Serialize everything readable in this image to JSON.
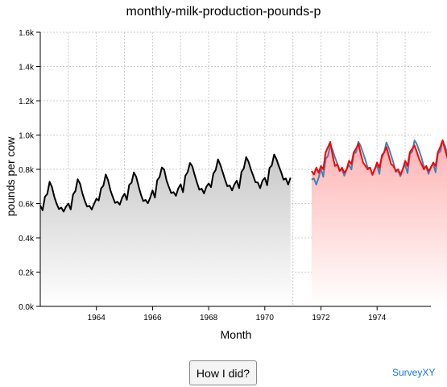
{
  "page": {
    "button_label": "How I did?",
    "brand": "SurveyXY"
  },
  "colors": {
    "history_line": "#000000",
    "actual_line": "#4682b4",
    "guess_line": "#ff0000",
    "history_area_top": "#c8c8c8",
    "guess_area_top": "#ffb3b3",
    "grid": "#cccccc",
    "link": "#1a73e8"
  },
  "chart_data": {
    "type": "line",
    "title": "monthly-milk-production-pounds-p",
    "xlabel": "Month",
    "ylabel": "pounds per cow",
    "x_range": [
      "1962-01",
      "1975-12"
    ],
    "ylim": [
      0,
      1600
    ],
    "x_ticks": [
      "1964",
      "1966",
      "1968",
      "1970",
      "1972",
      "1974"
    ],
    "y_ticks": [
      "0.0k",
      "0.2k",
      "0.4k",
      "0.6k",
      "0.8k",
      "1.0k",
      "1.2k",
      "1.4k",
      "1.6k"
    ],
    "grid": true,
    "legend": "none",
    "series": [
      {
        "role": "history",
        "start": "1962-01",
        "values": [
          589,
          561,
          640,
          656,
          727,
          697,
          640,
          599,
          568,
          577,
          553,
          582,
          600,
          566,
          653,
          673,
          742,
          716,
          660,
          617,
          583,
          587,
          565,
          598,
          628,
          618,
          688,
          705,
          770,
          736,
          678,
          639,
          604,
          611,
          594,
          634,
          658,
          622,
          709,
          722,
          782,
          756,
          702,
          653,
          615,
          621,
          602,
          635,
          677,
          635,
          736,
          755,
          811,
          798,
          735,
          697,
          661,
          667,
          645,
          688,
          713,
          667,
          762,
          784,
          837,
          817,
          767,
          722,
          681,
          687,
          660,
          698,
          717,
          696,
          775,
          796,
          858,
          826,
          783,
          740,
          701,
          706,
          677,
          711,
          734,
          690,
          785,
          805,
          871,
          845,
          801,
          764,
          725,
          723,
          690,
          734,
          750,
          707,
          807,
          824,
          886,
          859,
          819,
          783,
          740,
          747,
          711,
          751
        ]
      },
      {
        "role": "actual",
        "start": "1971-09",
        "values": [
          740,
          747,
          711,
          751,
          804,
          756,
          860,
          878,
          942,
          913,
          869,
          834,
          790,
          800,
          763,
          800,
          826,
          799,
          890,
          900,
          961,
          935,
          894,
          855,
          809,
          810,
          766,
          805,
          821,
          773,
          883,
          898,
          957,
          924,
          881,
          837,
          784,
          791,
          760,
          802,
          828,
          778,
          889,
          902,
          969,
          947,
          908,
          867,
          815,
          812,
          773,
          813,
          834,
          782,
          892,
          903,
          966,
          937,
          896,
          858,
          817,
          827,
          797,
          843
        ]
      },
      {
        "role": "guess",
        "start": "1971-09",
        "values": [
          790,
          770,
          810,
          780,
          820,
          800,
          900,
          930,
          960,
          880,
          820,
          830,
          790,
          810,
          780,
          800,
          850,
          830,
          900,
          920,
          950,
          890,
          840,
          820,
          800,
          810,
          770,
          800,
          840,
          810,
          870,
          900,
          930,
          880,
          830,
          820,
          790,
          800,
          770,
          800,
          850,
          820,
          900,
          920,
          940,
          900,
          860,
          830,
          800,
          820,
          790,
          810,
          840,
          820,
          900,
          930,
          970,
          920,
          870,
          840,
          800,
          820,
          800,
          840
        ]
      }
    ]
  }
}
